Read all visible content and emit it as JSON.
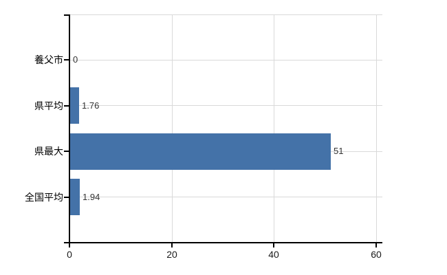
{
  "chart_data": {
    "type": "bar",
    "orientation": "horizontal",
    "title": "",
    "categories": [
      "養父市",
      "県平均",
      "県最大",
      "全国平均"
    ],
    "values": [
      0,
      1.76,
      51,
      1.94
    ],
    "value_labels": [
      "0",
      "1.76",
      "51",
      "1.94"
    ],
    "xlim": [
      0,
      60
    ],
    "xticks": [
      0,
      20,
      40,
      60
    ],
    "xtick_labels": [
      "0",
      "20",
      "40",
      "60"
    ],
    "bar_color": "#4472a8",
    "grid_color": "#d9d9d9",
    "axis_color": "#000000",
    "value_label_color": "#333333",
    "background_color": "#ffffff",
    "legend": false,
    "grid": true
  }
}
